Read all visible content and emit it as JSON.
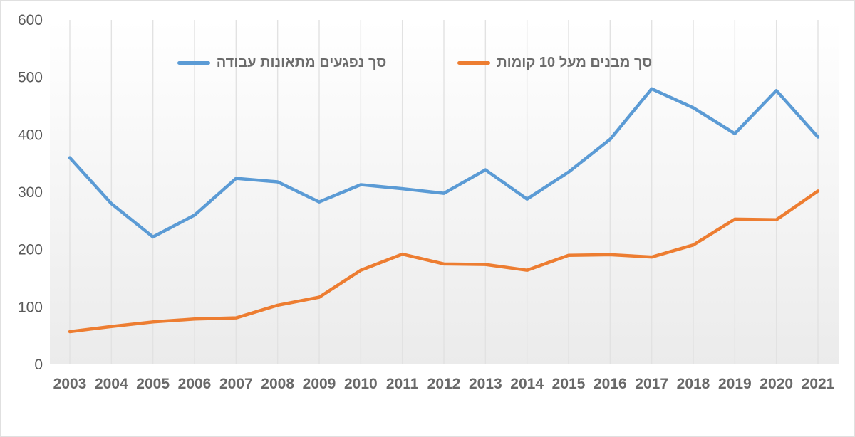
{
  "chart_data": {
    "type": "line",
    "x": [
      2003,
      2004,
      2005,
      2006,
      2007,
      2008,
      2009,
      2010,
      2011,
      2012,
      2013,
      2014,
      2015,
      2016,
      2017,
      2018,
      2019,
      2020,
      2021
    ],
    "series": [
      {
        "name": "סך נפגעים מתאונות עבודה",
        "color": "#5B9BD5",
        "values": [
          360,
          280,
          222,
          260,
          324,
          318,
          283,
          313,
          306,
          298,
          339,
          288,
          335,
          392,
          480,
          447,
          402,
          477,
          396
        ]
      },
      {
        "name": "סך מבנים מעל 10 קומות",
        "color": "#ED7D31",
        "values": [
          57,
          66,
          74,
          79,
          81,
          103,
          117,
          164,
          192,
          175,
          174,
          164,
          190,
          191,
          187,
          208,
          253,
          252,
          302
        ]
      }
    ],
    "title": "",
    "xlabel": "",
    "ylabel": "",
    "ylim": [
      0,
      600
    ],
    "yticks": [
      0,
      100,
      200,
      300,
      400,
      500,
      600
    ],
    "grid": "vertical-only",
    "legend_position": "top-center",
    "colors": {
      "gridline": "#e2e2e2",
      "plot_bg_top": "#ffffff",
      "plot_bg_bottom": "#ebebeb",
      "y_tick_text": "#595959",
      "x_tick_text": "#696969",
      "legend_text": "#6b6b6b",
      "frame_border": "#e0e0e0"
    }
  }
}
